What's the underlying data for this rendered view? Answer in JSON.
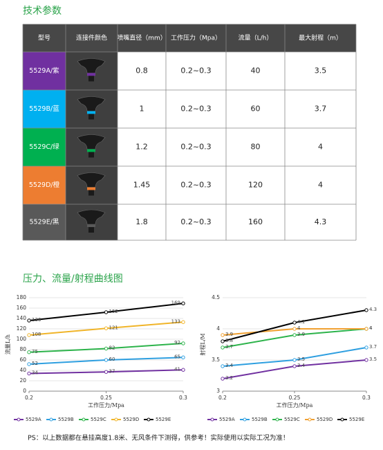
{
  "title": "技术参数",
  "table": {
    "header": [
      "型号",
      "连接件颜色",
      "喷嘴直径（mm）",
      "工作压力（Mpa）",
      "流量（L/h）",
      "最大射程（m）"
    ],
    "rows": [
      [
        "5529A/紫",
        "",
        "0.8",
        "0.2~0.3",
        "40",
        "3.5"
      ],
      [
        "5529B/蓝",
        "",
        "1",
        "0.2~0.3",
        "60",
        "3.7"
      ],
      [
        "5529C/绿",
        "",
        "1.2",
        "0.2~0.3",
        "80",
        "4"
      ],
      [
        "5529D/橙",
        "",
        "1.45",
        "0.2~0.3",
        "120",
        "4"
      ],
      [
        "5529E/黑",
        "",
        "1.8",
        "0.2~0.3",
        "160",
        "4.3"
      ]
    ],
    "row_colors": [
      "#7030a0",
      "#00b0f0",
      "#00b050",
      "#ed7d31",
      "#595959"
    ]
  },
  "section_title": "压力、流量/射程曲线图",
  "chart_data": [
    {
      "type": "line",
      "x_label": "工作压力/Mpa",
      "y_label": "流量L/h",
      "x": [
        0.2,
        0.25,
        0.3
      ],
      "xlim": [
        0.2,
        0.3
      ],
      "xticks": [
        0.2,
        0.25,
        0.3
      ],
      "ylim": [
        0,
        180
      ],
      "yticks": [
        0,
        20,
        40,
        60,
        80,
        100,
        120,
        140,
        160,
        180
      ],
      "grid": true,
      "series": [
        {
          "name": "5529A",
          "color": "#7030a0",
          "values": [
            34,
            37,
            41
          ]
        },
        {
          "name": "5529B",
          "color": "#2e9fe0",
          "values": [
            52,
            60,
            65
          ]
        },
        {
          "name": "5529C",
          "color": "#2cb34a",
          "values": [
            75,
            82,
            92
          ]
        },
        {
          "name": "5529D",
          "color": "#f0b428",
          "values": [
            108,
            121,
            133
          ]
        },
        {
          "name": "5529E",
          "color": "#000000",
          "values": [
            136,
            152,
            169
          ]
        }
      ]
    },
    {
      "type": "line",
      "x_label": "工作压力/Mpa",
      "y_label": "射程L/M",
      "x": [
        0.2,
        0.25,
        0.3
      ],
      "xlim": [
        0.2,
        0.3
      ],
      "xticks": [
        0.2,
        0.25,
        0.3
      ],
      "ylim": [
        3,
        4.5
      ],
      "yticks": [
        3,
        3.5,
        4,
        4.5
      ],
      "grid": true,
      "series": [
        {
          "name": "5529A",
          "color": "#7030a0",
          "values": [
            3.2,
            3.4,
            3.5
          ]
        },
        {
          "name": "5529B",
          "color": "#2e9fe0",
          "values": [
            3.4,
            3.5,
            3.7
          ]
        },
        {
          "name": "5529C",
          "color": "#2cb34a",
          "values": [
            3.7,
            3.9,
            4
          ]
        },
        {
          "name": "5529D",
          "color": "#f0a030",
          "values": [
            3.9,
            4,
            4
          ]
        },
        {
          "name": "5529E",
          "color": "#000000",
          "values": [
            3.8,
            4.1,
            4.3
          ]
        }
      ]
    }
  ],
  "footer": "PS：以上数据都在悬挂高度1.8米、无风条件下测得，供参考！实际使用以实际工况为准！"
}
